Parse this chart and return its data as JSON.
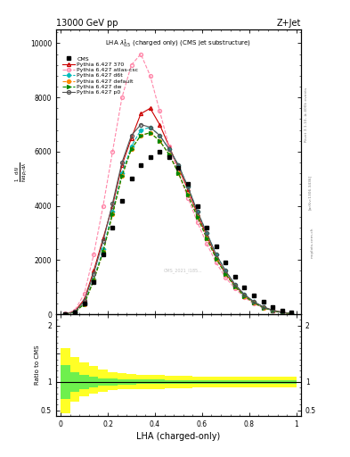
{
  "title_left": "13000 GeV pp",
  "title_right": "Z+Jet",
  "annotation": "LHA $\\lambda^1_{0.5}$ (charged only) (CMS jet substructure)",
  "watermark": "CMS_2021_I185...",
  "xlabel": "LHA (charged-only)",
  "right_label1": "Rivet 3.1.10, ≥ 400k events",
  "right_label2": "[arXiv:1306.3436]",
  "right_label3": "mcplots.cern.ch",
  "lha_bins": [
    0.0,
    0.04,
    0.08,
    0.12,
    0.16,
    0.2,
    0.24,
    0.28,
    0.32,
    0.36,
    0.4,
    0.44,
    0.48,
    0.52,
    0.56,
    0.6,
    0.64,
    0.68,
    0.72,
    0.76,
    0.8,
    0.84,
    0.88,
    0.92,
    0.96,
    1.0
  ],
  "cms_data": [
    10,
    80,
    400,
    1200,
    2200,
    3200,
    4200,
    5000,
    5500,
    5800,
    6000,
    5800,
    5400,
    4800,
    4000,
    3200,
    2500,
    1900,
    1400,
    1000,
    700,
    450,
    280,
    150,
    60
  ],
  "py370_data": [
    15,
    110,
    550,
    1600,
    2800,
    4000,
    5500,
    6500,
    7400,
    7600,
    7000,
    6200,
    5400,
    4600,
    3700,
    2900,
    2100,
    1500,
    1050,
    700,
    450,
    270,
    150,
    75,
    30
  ],
  "py_atlas_data": [
    20,
    150,
    750,
    2200,
    4000,
    6000,
    8000,
    9200,
    9600,
    8800,
    7500,
    6200,
    5200,
    4300,
    3400,
    2600,
    1900,
    1350,
    950,
    620,
    390,
    230,
    120,
    55,
    20
  ],
  "py_d6t_data": [
    10,
    80,
    400,
    1300,
    2400,
    3800,
    5200,
    6200,
    6800,
    6900,
    6600,
    6100,
    5500,
    4700,
    3800,
    3000,
    2200,
    1600,
    1100,
    730,
    460,
    270,
    140,
    65,
    22
  ],
  "py_default_data": [
    10,
    75,
    380,
    1250,
    2300,
    3700,
    5100,
    6100,
    6600,
    6700,
    6400,
    5900,
    5200,
    4400,
    3600,
    2800,
    2050,
    1480,
    1020,
    670,
    420,
    245,
    130,
    60,
    20
  ],
  "py_dw_data": [
    10,
    75,
    380,
    1250,
    2300,
    3700,
    5100,
    6100,
    6600,
    6700,
    6400,
    5900,
    5200,
    4400,
    3600,
    2800,
    2050,
    1480,
    1020,
    670,
    420,
    245,
    130,
    60,
    20
  ],
  "py_p0_data": [
    10,
    90,
    480,
    1500,
    2700,
    4100,
    5600,
    6600,
    7000,
    6900,
    6600,
    6100,
    5500,
    4700,
    3800,
    3000,
    2200,
    1600,
    1100,
    730,
    460,
    270,
    140,
    65,
    22
  ],
  "ratio_green_band_lo": [
    0.7,
    0.82,
    0.88,
    0.91,
    0.93,
    0.94,
    0.95,
    0.95,
    0.96,
    0.96,
    0.96,
    0.97,
    0.97,
    0.97,
    0.97,
    0.97,
    0.97,
    0.97,
    0.97,
    0.97,
    0.97,
    0.97,
    0.97,
    0.97,
    0.97
  ],
  "ratio_green_band_hi": [
    1.3,
    1.18,
    1.12,
    1.09,
    1.07,
    1.06,
    1.05,
    1.05,
    1.04,
    1.04,
    1.04,
    1.03,
    1.03,
    1.03,
    1.03,
    1.03,
    1.03,
    1.03,
    1.03,
    1.03,
    1.03,
    1.03,
    1.03,
    1.03,
    1.03
  ],
  "ratio_yellow_band_lo": [
    0.45,
    0.65,
    0.75,
    0.8,
    0.83,
    0.85,
    0.87,
    0.87,
    0.88,
    0.88,
    0.88,
    0.89,
    0.89,
    0.89,
    0.9,
    0.9,
    0.9,
    0.9,
    0.9,
    0.9,
    0.9,
    0.9,
    0.9,
    0.9,
    0.9
  ],
  "ratio_yellow_band_hi": [
    1.6,
    1.45,
    1.35,
    1.28,
    1.22,
    1.18,
    1.15,
    1.14,
    1.13,
    1.13,
    1.12,
    1.11,
    1.11,
    1.11,
    1.1,
    1.1,
    1.1,
    1.1,
    1.1,
    1.1,
    1.1,
    1.1,
    1.1,
    1.1,
    1.1
  ],
  "ylim_main_max": 10500,
  "ylim_ratio_lo": 0.4,
  "ylim_ratio_hi": 2.2,
  "color_370": "#cc0000",
  "color_atlas": "#ff88aa",
  "color_d6t": "#00bbbb",
  "color_default": "#ff8800",
  "color_dw": "#008800",
  "color_p0": "#555555"
}
